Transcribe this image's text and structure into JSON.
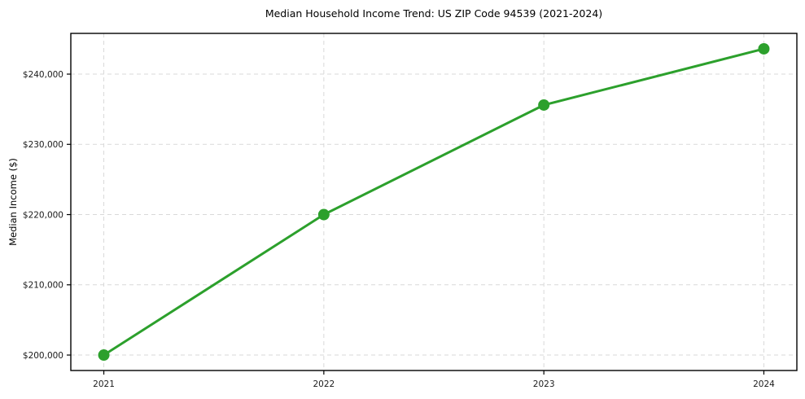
{
  "chart_data": {
    "type": "line",
    "title": "Median Household Income Trend: US ZIP Code 94539 (2021-2024)",
    "xlabel": "",
    "ylabel": "Median Income ($)",
    "x": [
      2021,
      2022,
      2023,
      2024
    ],
    "x_tick_labels": [
      "2021",
      "2022",
      "2023",
      "2024"
    ],
    "series": [
      {
        "name": "Median Household Income",
        "values": [
          200000,
          220000,
          235600,
          243600
        ]
      }
    ],
    "y_ticks": [
      200000,
      210000,
      220000,
      230000,
      240000
    ],
    "y_tick_labels": [
      "$200,000",
      "$210,000",
      "$220,000",
      "$230,000",
      "$240,000"
    ],
    "xlim": [
      2020.85,
      2024.15
    ],
    "ylim": [
      197800,
      245800
    ],
    "grid": true,
    "legend": "none",
    "line_color": "#2ca02c",
    "marker": "circle",
    "grid_color": "#d9d9d9",
    "axis_color": "#000000",
    "background_color": "#ffffff"
  }
}
